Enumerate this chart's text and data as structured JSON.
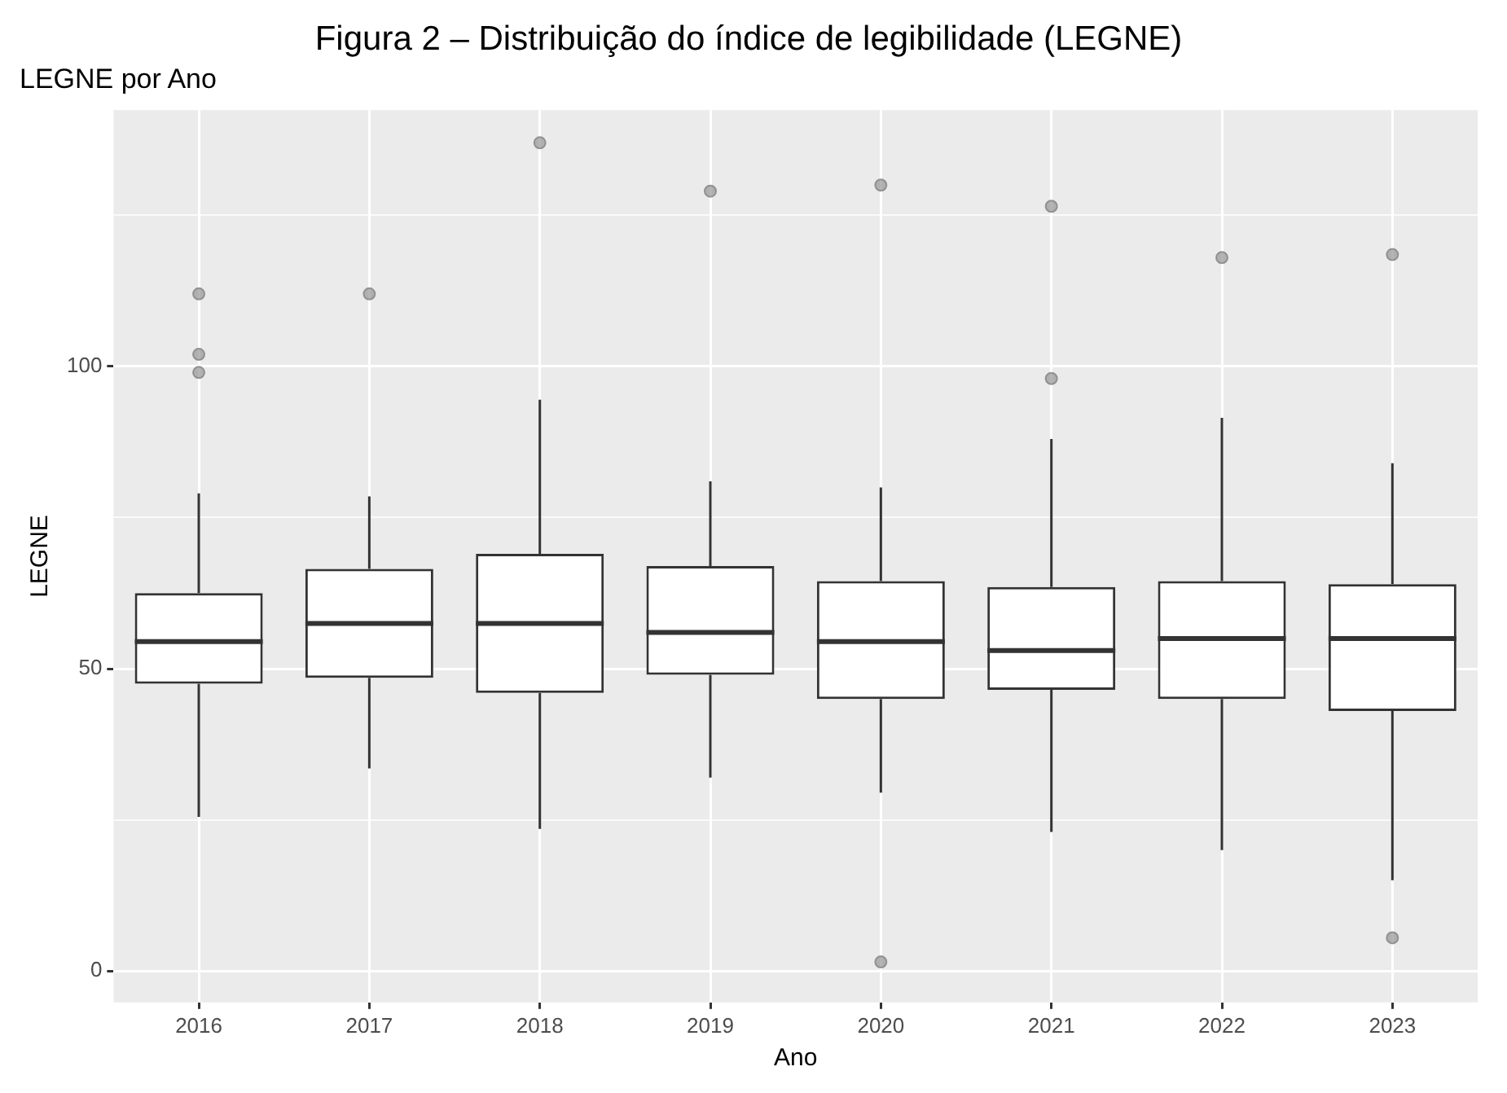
{
  "chart_data": {
    "type": "box",
    "title": "Figura 2 – Distribuição do índice de legibilidade (LEGNE)",
    "subtitle": "LEGNE por Ano",
    "xlabel": "Ano",
    "ylabel": "LEGNE",
    "categories": [
      "2016",
      "2017",
      "2018",
      "2019",
      "2020",
      "2021",
      "2022",
      "2023"
    ],
    "boxes": [
      {
        "low": 25.5,
        "q1": 47.5,
        "median": 54.5,
        "q3": 62.5,
        "high": 79,
        "outliers": [
          112,
          102,
          99
        ]
      },
      {
        "low": 33.5,
        "q1": 48.5,
        "median": 57.5,
        "q3": 66.5,
        "high": 78.5,
        "outliers": [
          112
        ]
      },
      {
        "low": 23.5,
        "q1": 46,
        "median": 57.5,
        "q3": 69,
        "high": 94.5,
        "outliers": [
          137
        ]
      },
      {
        "low": 32,
        "q1": 49,
        "median": 56,
        "q3": 67,
        "high": 81,
        "outliers": [
          129
        ]
      },
      {
        "low": 29.5,
        "q1": 45,
        "median": 54.5,
        "q3": 64.5,
        "high": 80,
        "outliers": [
          130,
          1.5
        ]
      },
      {
        "low": 23,
        "q1": 46.5,
        "median": 53,
        "q3": 63.5,
        "high": 88,
        "outliers": [
          126.5,
          98
        ]
      },
      {
        "low": 20,
        "q1": 45,
        "median": 55,
        "q3": 64.5,
        "high": 91.5,
        "outliers": [
          118
        ]
      },
      {
        "low": 15,
        "q1": 43,
        "median": 55,
        "q3": 64,
        "high": 84,
        "outliers": [
          118.5,
          5.5
        ]
      }
    ],
    "color": "#333333",
    "ylim": [
      -5.2,
      142.4
    ],
    "yticks": [
      0,
      {
        "value": 25,
        "label": null
      },
      50,
      {
        "value": 75,
        "label": null
      },
      100,
      {
        "value": 125,
        "label": null
      }
    ],
    "grid": true
  }
}
